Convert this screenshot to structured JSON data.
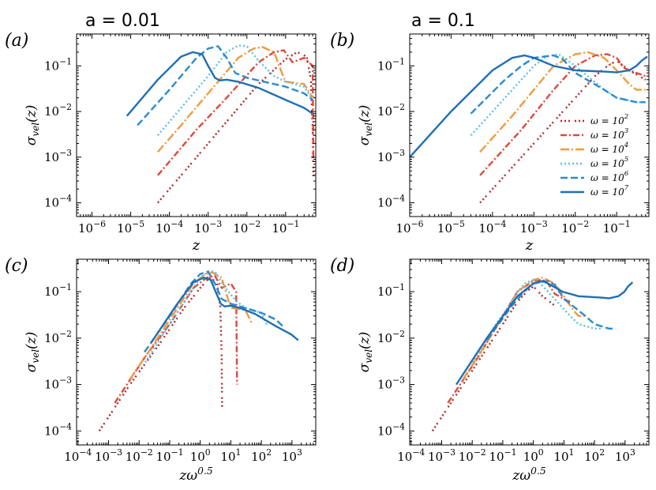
{
  "figure": {
    "column_titles": [
      "a = 0.01",
      "a = 0.1"
    ]
  },
  "chart_data": [
    {
      "type": "line",
      "panel_label": "(a)",
      "column_title": "a = 0.01",
      "xlabel": "z",
      "ylabel": "σ_vel(z)",
      "xscale": "log",
      "yscale": "log",
      "xlim": [
        4e-07,
        0.6
      ],
      "ylim": [
        5e-05,
        0.5
      ],
      "xticks": [
        "10^-6",
        "10^-5",
        "10^-4",
        "10^-3",
        "10^-2",
        "10^-1"
      ],
      "yticks": [
        "10^-4",
        "10^-3",
        "10^-2",
        "10^-1"
      ],
      "series": [
        {
          "name": "ω = 10^2",
          "x": [
            5e-05,
            0.0003,
            0.003,
            0.02,
            0.1,
            0.2,
            0.35,
            0.45,
            0.5,
            0.52
          ],
          "y": [
            0.0001,
            0.0006,
            0.006,
            0.04,
            0.14,
            0.2,
            0.16,
            0.05,
            0.004,
            0.0003
          ]
        },
        {
          "name": "ω = 10^3",
          "x": [
            5e-05,
            0.0005,
            0.003,
            0.02,
            0.05,
            0.09,
            0.15,
            0.3,
            0.5,
            0.52
          ],
          "y": [
            0.0004,
            0.004,
            0.02,
            0.12,
            0.2,
            0.22,
            0.12,
            0.15,
            0.1,
            0.001
          ]
        },
        {
          "name": "ω = 10^4",
          "x": [
            5e-05,
            0.0002,
            0.001,
            0.006,
            0.015,
            0.025,
            0.05,
            0.08,
            0.1,
            0.3,
            0.5
          ],
          "y": [
            0.0013,
            0.005,
            0.025,
            0.15,
            0.24,
            0.26,
            0.2,
            0.07,
            0.045,
            0.04,
            0.02
          ]
        },
        {
          "name": "ω = 10^5",
          "x": [
            5e-05,
            0.0002,
            0.001,
            0.003,
            0.006,
            0.01,
            0.02,
            0.05,
            0.1,
            0.3,
            0.5
          ],
          "y": [
            0.003,
            0.012,
            0.06,
            0.2,
            0.28,
            0.27,
            0.13,
            0.06,
            0.045,
            0.035,
            0.018
          ]
        },
        {
          "name": "ω = 10^6",
          "x": [
            1.5e-05,
            0.0001,
            0.0005,
            0.001,
            0.0018,
            0.003,
            0.005,
            0.01,
            0.05,
            0.1,
            0.3,
            0.5
          ],
          "y": [
            0.005,
            0.03,
            0.15,
            0.24,
            0.27,
            0.15,
            0.07,
            0.055,
            0.04,
            0.035,
            0.025,
            0.018
          ]
        },
        {
          "name": "ω = 10^7",
          "x": [
            8e-06,
            5e-05,
            0.0002,
            0.0004,
            0.0007,
            0.001,
            0.0015,
            0.002,
            0.003,
            0.006,
            0.02,
            0.1,
            0.3,
            0.5
          ],
          "y": [
            0.008,
            0.05,
            0.16,
            0.2,
            0.18,
            0.1,
            0.055,
            0.048,
            0.05,
            0.045,
            0.033,
            0.018,
            0.012,
            0.009
          ]
        }
      ]
    },
    {
      "type": "line",
      "panel_label": "(b)",
      "column_title": "a = 0.1",
      "xlabel": "z",
      "ylabel": "σ_vel(z)",
      "xscale": "log",
      "yscale": "log",
      "xlim": [
        1e-06,
        0.6
      ],
      "ylim": [
        5e-05,
        0.5
      ],
      "xticks": [
        "10^-6",
        "10^-5",
        "10^-4",
        "10^-3",
        "10^-2",
        "10^-1"
      ],
      "yticks": [
        "10^-4",
        "10^-3",
        "10^-2",
        "10^-1"
      ],
      "legend": {
        "placement": "right",
        "entries": [
          "ω = 10^2",
          "ω = 10^3",
          "ω = 10^4",
          "ω = 10^5",
          "ω = 10^6",
          "ω = 10^7"
        ]
      },
      "series": [
        {
          "name": "ω = 10^2",
          "x": [
            5e-05,
            0.0005,
            0.005,
            0.03,
            0.06,
            0.1,
            0.2,
            0.35,
            0.5
          ],
          "y": [
            0.0001,
            0.001,
            0.01,
            0.06,
            0.1,
            0.13,
            0.08,
            0.06,
            0.05
          ]
        },
        {
          "name": "ω = 10^3",
          "x": [
            5e-05,
            0.0005,
            0.003,
            0.01,
            0.03,
            0.06,
            0.1,
            0.15,
            0.3,
            0.5
          ],
          "y": [
            0.0004,
            0.004,
            0.03,
            0.1,
            0.17,
            0.18,
            0.15,
            0.09,
            0.07,
            0.06
          ]
        },
        {
          "name": "ω = 10^4",
          "x": [
            5e-05,
            0.0003,
            0.001,
            0.003,
            0.01,
            0.02,
            0.05,
            0.1,
            0.2,
            0.3,
            0.5
          ],
          "y": [
            0.0013,
            0.008,
            0.03,
            0.1,
            0.18,
            0.2,
            0.15,
            0.08,
            0.04,
            0.03,
            0.03
          ]
        },
        {
          "name": "ω = 10^5",
          "x": [
            3e-05,
            0.0002,
            0.0005,
            0.001,
            0.002,
            0.004,
            0.01,
            0.05,
            0.1,
            0.3,
            0.5
          ],
          "y": [
            0.003,
            0.02,
            0.05,
            0.1,
            0.16,
            0.18,
            0.1,
            0.03,
            0.02,
            0.016,
            0.016
          ]
        },
        {
          "name": "ω = 10^6",
          "x": [
            3e-05,
            0.0002,
            0.0005,
            0.001,
            0.003,
            0.005,
            0.01,
            0.05,
            0.1,
            0.3,
            0.5
          ],
          "y": [
            0.009,
            0.05,
            0.1,
            0.15,
            0.17,
            0.14,
            0.07,
            0.03,
            0.02,
            0.016,
            0.016
          ]
        },
        {
          "name": "ω = 10^7",
          "x": [
            1e-06,
            1e-05,
            0.0001,
            0.0003,
            0.0006,
            0.001,
            0.003,
            0.01,
            0.05,
            0.1,
            0.2,
            0.3,
            0.4,
            0.5,
            0.55
          ],
          "y": [
            0.001,
            0.01,
            0.08,
            0.15,
            0.17,
            0.15,
            0.1,
            0.08,
            0.075,
            0.072,
            0.08,
            0.1,
            0.13,
            0.15,
            0.16
          ]
        }
      ]
    },
    {
      "type": "line",
      "panel_label": "(c)",
      "xlabel": "zω^0.5",
      "ylabel": "σ_vel(z)",
      "xscale": "log",
      "yscale": "log",
      "xlim": [
        9e-05,
        6000
      ],
      "ylim": [
        5e-05,
        0.5
      ],
      "xticks": [
        "10^-4",
        "10^-3",
        "10^-2",
        "10^-1",
        "10^0",
        "10^1",
        "10^2",
        "10^3"
      ],
      "yticks": [
        "10^-4",
        "10^-3",
        "10^-2",
        "10^-1"
      ],
      "series": [
        {
          "name": "ω = 10^2",
          "x": [
            0.0005,
            0.005,
            0.05,
            0.3,
            1,
            2,
            3.5,
            4.5,
            5,
            5.2
          ],
          "y": [
            0.0001,
            0.001,
            0.008,
            0.045,
            0.12,
            0.2,
            0.16,
            0.05,
            0.004,
            0.0003
          ]
        },
        {
          "name": "ω = 10^3",
          "x": [
            0.0016,
            0.016,
            0.1,
            0.6,
            1.6,
            3,
            5,
            10,
            15,
            16
          ],
          "y": [
            0.0004,
            0.004,
            0.02,
            0.12,
            0.2,
            0.22,
            0.12,
            0.15,
            0.1,
            0.001
          ]
        },
        {
          "name": "ω = 10^4",
          "x": [
            0.005,
            0.02,
            0.1,
            0.6,
            1.5,
            2.5,
            5,
            8,
            10,
            30,
            50
          ],
          "y": [
            0.0013,
            0.005,
            0.025,
            0.15,
            0.24,
            0.26,
            0.2,
            0.07,
            0.045,
            0.04,
            0.02
          ]
        },
        {
          "name": "ω = 10^5",
          "x": [
            0.016,
            0.06,
            0.3,
            1,
            2,
            3,
            6,
            16,
            30,
            100,
            160
          ],
          "y": [
            0.003,
            0.012,
            0.06,
            0.2,
            0.28,
            0.27,
            0.13,
            0.06,
            0.045,
            0.035,
            0.018
          ]
        },
        {
          "name": "ω = 10^6",
          "x": [
            0.015,
            0.1,
            0.5,
            1,
            1.8,
            3,
            5,
            10,
            50,
            100,
            300,
            500
          ],
          "y": [
            0.005,
            0.03,
            0.15,
            0.24,
            0.27,
            0.15,
            0.07,
            0.055,
            0.04,
            0.035,
            0.025,
            0.018
          ]
        },
        {
          "name": "ω = 10^7",
          "x": [
            0.025,
            0.16,
            0.6,
            1.3,
            2.2,
            3.2,
            4.7,
            6.3,
            9.5,
            19,
            63,
            300,
            950,
            1600
          ],
          "y": [
            0.008,
            0.05,
            0.16,
            0.2,
            0.18,
            0.1,
            0.055,
            0.048,
            0.05,
            0.045,
            0.033,
            0.018,
            0.012,
            0.009
          ]
        }
      ]
    },
    {
      "type": "line",
      "panel_label": "(d)",
      "xlabel": "zω^0.5",
      "ylabel": "σ_vel(z)",
      "xscale": "log",
      "yscale": "log",
      "xlim": [
        9e-05,
        6000
      ],
      "ylim": [
        5e-05,
        0.5
      ],
      "xticks": [
        "10^-4",
        "10^-3",
        "10^-2",
        "10^-1",
        "10^0",
        "10^1",
        "10^2",
        "10^3"
      ],
      "yticks": [
        "10^-4",
        "10^-3",
        "10^-2",
        "10^-1"
      ],
      "series": [
        {
          "name": "ω = 10^2",
          "x": [
            0.0005,
            0.005,
            0.05,
            0.3,
            0.6,
            1,
            2,
            3.5,
            5
          ],
          "y": [
            0.0001,
            0.001,
            0.01,
            0.06,
            0.1,
            0.13,
            0.08,
            0.06,
            0.05
          ]
        },
        {
          "name": "ω = 10^3",
          "x": [
            0.0016,
            0.016,
            0.1,
            0.3,
            1,
            2,
            3,
            5,
            10,
            16
          ],
          "y": [
            0.0004,
            0.004,
            0.03,
            0.1,
            0.17,
            0.18,
            0.15,
            0.09,
            0.07,
            0.06
          ]
        },
        {
          "name": "ω = 10^4",
          "x": [
            0.005,
            0.03,
            0.1,
            0.3,
            1,
            2,
            5,
            10,
            20,
            30,
            50
          ],
          "y": [
            0.0013,
            0.008,
            0.03,
            0.1,
            0.18,
            0.2,
            0.15,
            0.08,
            0.04,
            0.03,
            0.03
          ]
        },
        {
          "name": "ω = 10^5",
          "x": [
            0.01,
            0.06,
            0.16,
            0.3,
            0.6,
            1.3,
            3,
            16,
            30,
            100,
            160
          ],
          "y": [
            0.003,
            0.02,
            0.05,
            0.1,
            0.16,
            0.18,
            0.1,
            0.03,
            0.02,
            0.016,
            0.016
          ]
        },
        {
          "name": "ω = 10^6",
          "x": [
            0.03,
            0.2,
            0.5,
            1,
            3,
            5,
            10,
            50,
            100,
            300,
            500
          ],
          "y": [
            0.009,
            0.05,
            0.1,
            0.15,
            0.17,
            0.14,
            0.07,
            0.03,
            0.02,
            0.016,
            0.016
          ]
        },
        {
          "name": "ω = 10^7",
          "x": [
            0.003,
            0.03,
            0.3,
            1,
            2,
            3,
            9,
            30,
            150,
            300,
            600,
            950,
            1250,
            1600,
            1750
          ],
          "y": [
            0.001,
            0.01,
            0.08,
            0.15,
            0.17,
            0.15,
            0.1,
            0.08,
            0.075,
            0.072,
            0.08,
            0.1,
            0.13,
            0.15,
            0.16
          ]
        }
      ]
    }
  ],
  "styles": {
    "series": [
      {
        "name": "ω = 10^2",
        "color": "#b22a2e",
        "dash": "2,3,2,3,2,6"
      },
      {
        "name": "ω = 10^3",
        "color": "#e0483a",
        "dash": "8,3,2,3"
      },
      {
        "name": "ω = 10^4",
        "color": "#f19a3e",
        "dash": "11,3,2,3"
      },
      {
        "name": "ω = 10^5",
        "color": "#5bc0e6",
        "dash": "2,3"
      },
      {
        "name": "ω = 10^6",
        "color": "#2b8ad0",
        "dash": "9,4"
      },
      {
        "name": "ω = 10^7",
        "color": "#1f6fb4",
        "dash": ""
      }
    ]
  }
}
